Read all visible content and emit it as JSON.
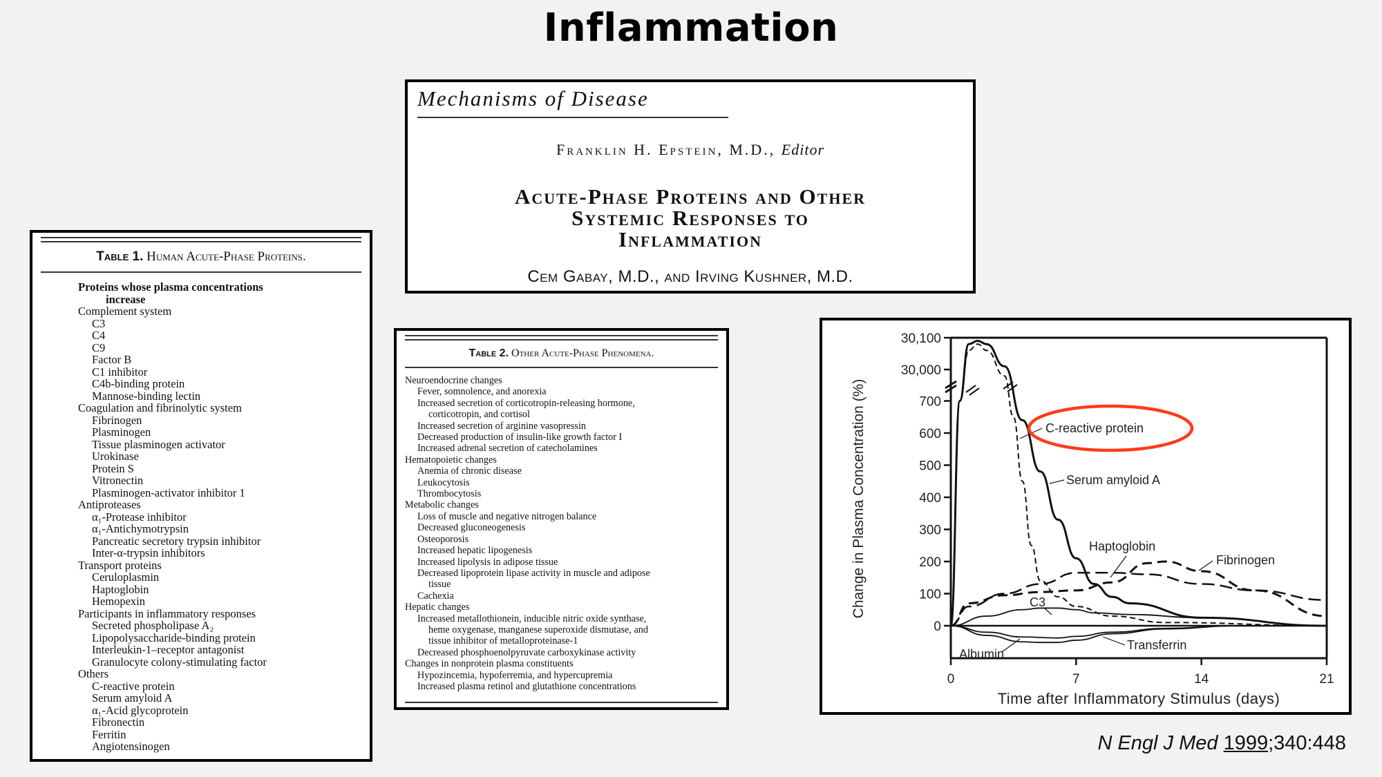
{
  "slide": {
    "title": "Inflammation",
    "citation": {
      "journal": "N Engl J Med",
      "year": "1999",
      "rest": ";340:448"
    }
  },
  "article": {
    "section": "Mechanisms of Disease",
    "editor_name": "Franklin H. Epstein, M.D.,",
    "editor_role": "Editor",
    "headline_lines": [
      "Acute-Phase Proteins and Other",
      "Systemic Responses to",
      "Inflammation"
    ],
    "authors": "Cem Gabay, M.D., and Irving Kushner, M.D."
  },
  "table1": {
    "label": "Table 1.",
    "title": "Human Acute-Phase Proteins.",
    "header_line1": "Proteins whose plasma concentrations",
    "header_line2": "increase",
    "rows": [
      {
        "type": "cat",
        "text": "Complement system"
      },
      {
        "type": "item",
        "text": "C3"
      },
      {
        "type": "item",
        "text": "C4"
      },
      {
        "type": "item",
        "text": "C9"
      },
      {
        "type": "item",
        "text": "Factor B"
      },
      {
        "type": "item",
        "text": "C1 inhibitor"
      },
      {
        "type": "item",
        "text": "C4b-binding protein"
      },
      {
        "type": "item",
        "text": "Mannose-binding lectin"
      },
      {
        "type": "cat",
        "text": "Coagulation and fibrinolytic system"
      },
      {
        "type": "item",
        "text": "Fibrinogen"
      },
      {
        "type": "item",
        "text": "Plasminogen"
      },
      {
        "type": "item",
        "text": "Tissue plasminogen activator"
      },
      {
        "type": "item",
        "text": "Urokinase"
      },
      {
        "type": "item",
        "text": "Protein S"
      },
      {
        "type": "item",
        "text": "Vitronectin"
      },
      {
        "type": "item",
        "text": "Plasminogen-activator inhibitor 1"
      },
      {
        "type": "cat",
        "text": "Antiproteases"
      },
      {
        "type": "item",
        "text": "α₁-Protease inhibitor"
      },
      {
        "type": "item",
        "text": "α₁-Antichymotrypsin"
      },
      {
        "type": "item",
        "text": "Pancreatic secretory trypsin inhibitor"
      },
      {
        "type": "item",
        "text": "Inter-α-trypsin inhibitors"
      },
      {
        "type": "cat",
        "text": "Transport proteins"
      },
      {
        "type": "item",
        "text": "Ceruloplasmin"
      },
      {
        "type": "item",
        "text": "Haptoglobin"
      },
      {
        "type": "item",
        "text": "Hemopexin"
      },
      {
        "type": "cat",
        "text": "Participants in inflammatory responses"
      },
      {
        "type": "item",
        "text": "Secreted phospholipase A₂"
      },
      {
        "type": "item",
        "text": "Lipopolysaccharide-binding protein"
      },
      {
        "type": "item",
        "text": "Interleukin-1–receptor antagonist"
      },
      {
        "type": "item",
        "text": "Granulocyte colony-stimulating factor"
      },
      {
        "type": "cat",
        "text": "Others"
      },
      {
        "type": "item",
        "text": "C-reactive protein"
      },
      {
        "type": "item",
        "text": "Serum amyloid A"
      },
      {
        "type": "item",
        "text": "α₁-Acid glycoprotein"
      },
      {
        "type": "item",
        "text": "Fibronectin"
      },
      {
        "type": "item",
        "text": "Ferritin"
      },
      {
        "type": "item",
        "text": "Angiotensinogen"
      }
    ]
  },
  "table2": {
    "label": "Table 2.",
    "title": "Other Acute-Phase Phenomena.",
    "rows": [
      {
        "type": "cat",
        "text": "Neuroendocrine changes"
      },
      {
        "type": "item",
        "text": "Fever, somnolence, and anorexia"
      },
      {
        "type": "item",
        "text": "Increased secretion of corticotropin-releasing hormone,"
      },
      {
        "type": "cont",
        "text": "corticotropin, and cortisol"
      },
      {
        "type": "item",
        "text": "Increased secretion of arginine vasopressin"
      },
      {
        "type": "item",
        "text": "Decreased production of insulin-like growth factor I"
      },
      {
        "type": "item",
        "text": "Increased adrenal secretion of catecholamines"
      },
      {
        "type": "cat",
        "text": "Hematopoietic changes"
      },
      {
        "type": "item",
        "text": "Anemia of chronic disease"
      },
      {
        "type": "item",
        "text": "Leukocytosis"
      },
      {
        "type": "item",
        "text": "Thrombocytosis"
      },
      {
        "type": "cat",
        "text": "Metabolic changes"
      },
      {
        "type": "item",
        "text": "Loss of muscle and negative nitrogen balance"
      },
      {
        "type": "item",
        "text": "Decreased gluconeogenesis"
      },
      {
        "type": "item",
        "text": "Osteoporosis"
      },
      {
        "type": "item",
        "text": "Increased hepatic lipogenesis"
      },
      {
        "type": "item",
        "text": "Increased lipolysis in adipose tissue"
      },
      {
        "type": "item",
        "text": "Decreased lipoprotein lipase activity in muscle and adipose"
      },
      {
        "type": "cont",
        "text": "tissue"
      },
      {
        "type": "item",
        "text": "Cachexia"
      },
      {
        "type": "cat",
        "text": "Hepatic changes"
      },
      {
        "type": "item",
        "text": "Increased metallothionein, inducible nitric oxide synthase,"
      },
      {
        "type": "cont",
        "text": "heme oxygenase, manganese superoxide dismutase, and"
      },
      {
        "type": "cont",
        "text": "tissue inhibitor of metalloproteinase-1"
      },
      {
        "type": "item",
        "text": "Decreased phosphoenolpyruvate carboxykinase activity"
      },
      {
        "type": "cat",
        "text": "Changes in nonprotein plasma constituents"
      },
      {
        "type": "item",
        "text": "Hypozincemia, hypoferremia, and hypercupremia"
      },
      {
        "type": "item",
        "text": "Increased plasma retinol and glutathione concentrations"
      }
    ]
  },
  "chart_data": {
    "type": "line",
    "title": "",
    "xlabel": "Time after Inflammatory Stimulus (days)",
    "ylabel": "Change in Plasma Concentration (%)",
    "x_ticks": [
      0,
      7,
      14,
      21
    ],
    "y_ticks": [
      "0",
      "100",
      "200",
      "300",
      "400",
      "500",
      "600",
      "700",
      "30,000",
      "30,100"
    ],
    "y_axis_break": "between 700 and 30,000",
    "xlim": [
      0,
      21
    ],
    "highlight": {
      "label": "C-reactive protein",
      "color": "#ff3b1a",
      "shape": "ellipse"
    },
    "series": [
      {
        "name": "C-reactive protein",
        "style": "dashed-short",
        "x": [
          0,
          0.5,
          1,
          1.5,
          2,
          3,
          3.5,
          4,
          4.5,
          5,
          6,
          7,
          9,
          12,
          21
        ],
        "y": [
          0,
          700,
          30060,
          30080,
          30060,
          29980,
          650,
          450,
          250,
          140,
          90,
          60,
          30,
          10,
          0
        ]
      },
      {
        "name": "Serum amyloid A",
        "style": "solid",
        "x": [
          0,
          0.5,
          1,
          1.5,
          2,
          3,
          4,
          5,
          6,
          7,
          8,
          9,
          10,
          14,
          21
        ],
        "y": [
          0,
          700,
          30080,
          30090,
          30080,
          30010,
          640,
          480,
          330,
          210,
          130,
          90,
          70,
          25,
          0
        ]
      },
      {
        "name": "Haptoglobin",
        "style": "dashed-long",
        "x": [
          0,
          1,
          3,
          5,
          7,
          9,
          11,
          14,
          17,
          21
        ],
        "y": [
          0,
          60,
          100,
          130,
          165,
          165,
          160,
          130,
          110,
          80
        ]
      },
      {
        "name": "Fibrinogen",
        "style": "dashed-medium",
        "x": [
          0,
          1,
          3,
          5,
          7,
          9,
          11,
          12,
          14,
          17,
          21
        ],
        "y": [
          0,
          70,
          95,
          105,
          110,
          135,
          195,
          200,
          170,
          110,
          30
        ]
      },
      {
        "name": "C3",
        "style": "solid-thin",
        "x": [
          0,
          2,
          4,
          5,
          6,
          7,
          8,
          10,
          14,
          21
        ],
        "y": [
          0,
          30,
          50,
          55,
          55,
          50,
          40,
          35,
          25,
          0
        ]
      },
      {
        "name": "Albumin",
        "style": "solid-thin",
        "x": [
          0,
          2,
          4,
          5,
          6,
          7,
          9,
          12,
          16,
          21
        ],
        "y": [
          0,
          -30,
          -50,
          -52,
          -52,
          -45,
          -25,
          -10,
          0,
          0
        ]
      },
      {
        "name": "Transferrin",
        "style": "solid-thin",
        "x": [
          0,
          2,
          4,
          6,
          7,
          9,
          12,
          16,
          21
        ],
        "y": [
          0,
          -20,
          -35,
          -38,
          -33,
          -20,
          -8,
          0,
          0
        ]
      }
    ]
  }
}
